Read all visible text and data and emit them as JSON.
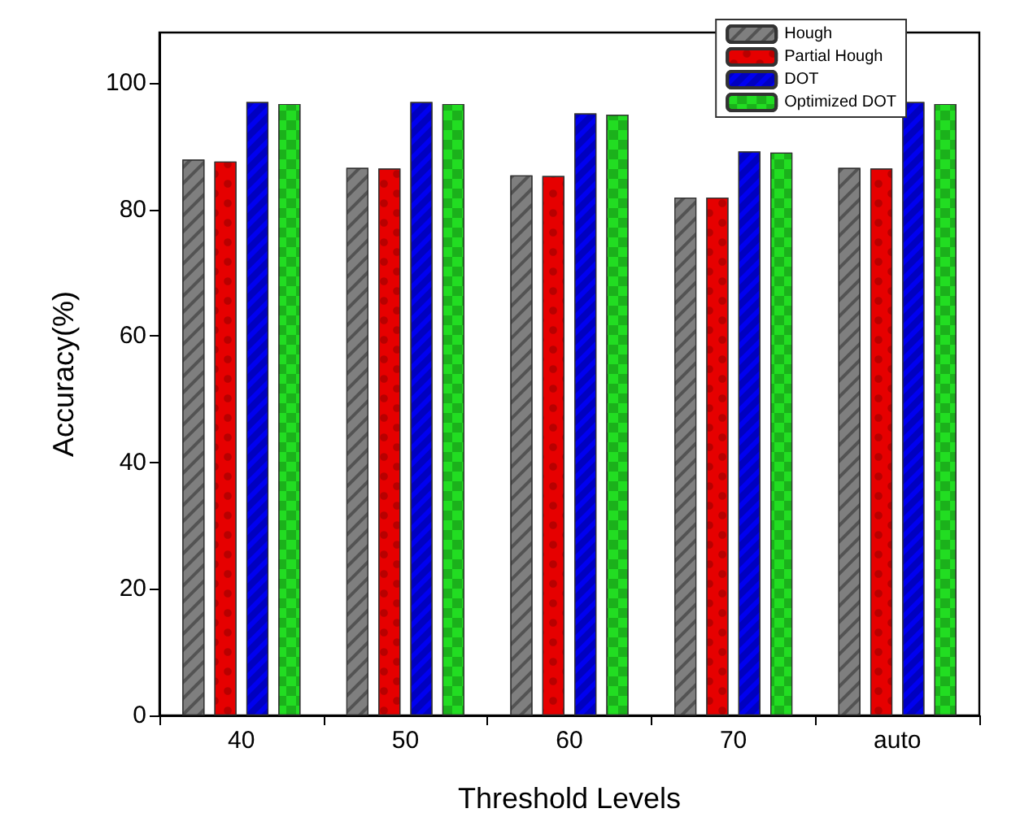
{
  "chart_data": {
    "type": "bar",
    "xlabel": "Threshold Levels",
    "ylabel": "Accuracy(%)",
    "categories": [
      "40",
      "50",
      "60",
      "70",
      "auto"
    ],
    "series": [
      {
        "name": "Hough",
        "color": "#7f7f7f",
        "values": [
          87.9,
          86.6,
          85.4,
          81.9,
          86.6
        ]
      },
      {
        "name": "Partial Hough",
        "color": "#e60000",
        "values": [
          87.6,
          86.5,
          85.3,
          81.9,
          86.5
        ]
      },
      {
        "name": "DOT",
        "color": "#0000f0",
        "values": [
          97.0,
          97.0,
          95.2,
          89.2,
          97.0
        ]
      },
      {
        "name": "Optimized DOT",
        "color": "#22dd22",
        "values": [
          96.7,
          96.7,
          95.0,
          89.0,
          96.7
        ]
      }
    ],
    "ylim": [
      0,
      108
    ],
    "yticks": [
      0,
      20,
      40,
      60,
      80,
      100
    ],
    "grid": false,
    "legend": "top right"
  }
}
